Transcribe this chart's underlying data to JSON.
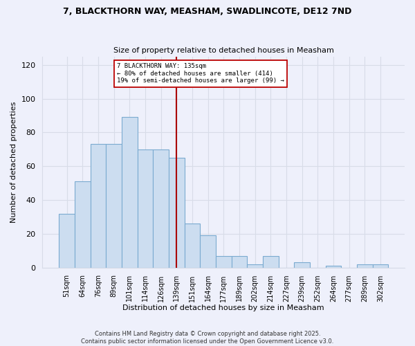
{
  "title": "7, BLACKTHORN WAY, MEASHAM, SWADLINCOTE, DE12 7ND",
  "subtitle": "Size of property relative to detached houses in Measham",
  "xlabel": "Distribution of detached houses by size in Measham",
  "ylabel": "Number of detached properties",
  "bar_labels": [
    "51sqm",
    "64sqm",
    "76sqm",
    "89sqm",
    "101sqm",
    "114sqm",
    "126sqm",
    "139sqm",
    "151sqm",
    "164sqm",
    "177sqm",
    "189sqm",
    "202sqm",
    "214sqm",
    "227sqm",
    "239sqm",
    "252sqm",
    "264sqm",
    "277sqm",
    "289sqm",
    "302sqm"
  ],
  "bar_values": [
    32,
    51,
    73,
    73,
    89,
    70,
    70,
    65,
    26,
    19,
    7,
    7,
    2,
    7,
    0,
    3,
    0,
    1,
    0,
    2,
    2
  ],
  "bar_color": "#ccddf0",
  "bar_edge_color": "#7aaad0",
  "vline_x": 7,
  "vline_color": "#aa0000",
  "annotation_title": "7 BLACKTHORN WAY: 135sqm",
  "annotation_line1": "← 80% of detached houses are smaller (414)",
  "annotation_line2": "19% of semi-detached houses are larger (99) →",
  "annotation_box_color": "#ffffff",
  "annotation_box_edge": "#bb0000",
  "ylim": [
    0,
    125
  ],
  "yticks": [
    0,
    20,
    40,
    60,
    80,
    100,
    120
  ],
  "footer1": "Contains HM Land Registry data © Crown copyright and database right 2025.",
  "footer2": "Contains public sector information licensed under the Open Government Licence v3.0.",
  "bg_color": "#eef0fb",
  "grid_color": "#d8dce8",
  "plot_bg_color": "#eef0fb"
}
